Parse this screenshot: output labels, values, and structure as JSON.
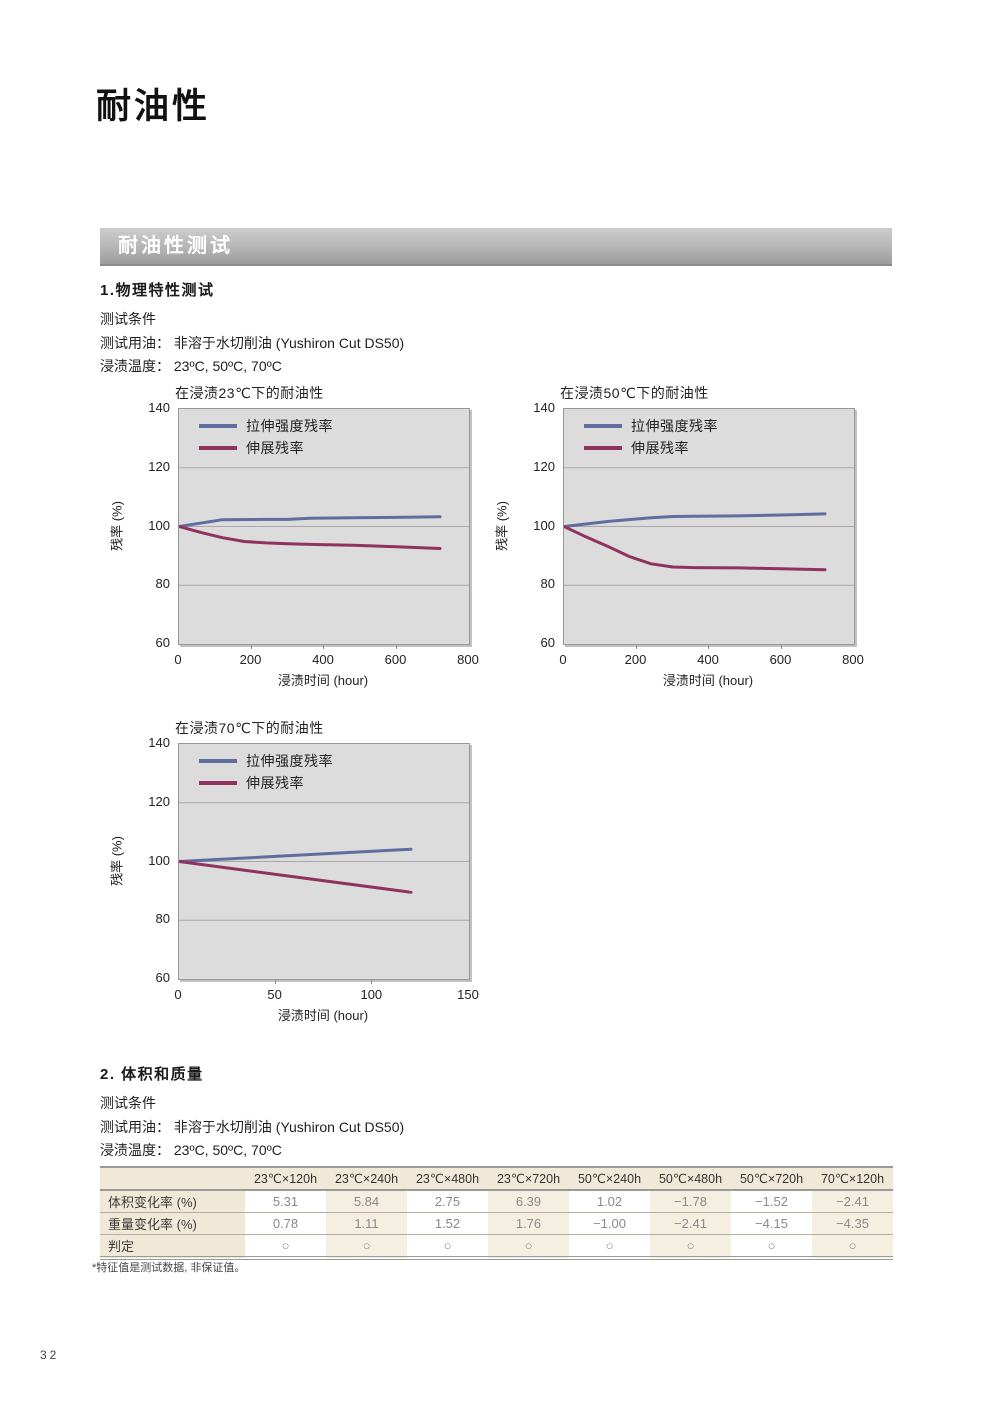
{
  "page": {
    "title": "耐油性",
    "number": "32",
    "footnote": "*特征值是测试数据, 非保证值。"
  },
  "section_header": {
    "label": "耐油性测试"
  },
  "section1": {
    "heading": "1.物理特性测试",
    "lines": [
      "测试条件",
      "测试用油： 非溶于水切削油 (Yushiron Cut DS50)",
      "浸渍温度： 23ºC, 50ºC, 70ºC"
    ]
  },
  "section2": {
    "heading": "2. 体积和质量",
    "lines": [
      "测试条件",
      "测试用油： 非溶于水切削油 (Yushiron Cut DS50)",
      "浸渍温度： 23ºC, 50ºC, 70ºC"
    ]
  },
  "chart_data": [
    {
      "type": "line",
      "title": "在浸渍23℃下的耐油性",
      "xlabel": "浸渍时间 (hour)",
      "ylabel": "残率 (%)",
      "xlim": [
        0,
        800
      ],
      "xticks": [
        0,
        200,
        400,
        600,
        800
      ],
      "ylim": [
        60,
        140
      ],
      "yticks": [
        60,
        80,
        100,
        120,
        140
      ],
      "grid": "horizontal",
      "legend_position": "top-left",
      "plot_bg": "#dcdcdc",
      "series": [
        {
          "name": "拉伸强度残率",
          "color": "#5f6e9e",
          "x": [
            0,
            120,
            240,
            300,
            360,
            480,
            600,
            720
          ],
          "y": [
            100,
            102.3,
            102.4,
            102.4,
            102.8,
            103,
            103.1,
            103.3
          ]
        },
        {
          "name": "伸展残率",
          "color": "#90325f",
          "x": [
            0,
            60,
            120,
            180,
            240,
            300,
            360,
            480,
            600,
            720
          ],
          "y": [
            100,
            98,
            96.2,
            94.9,
            94.4,
            94.1,
            93.9,
            93.6,
            93.1,
            92.5
          ]
        }
      ]
    },
    {
      "type": "line",
      "title": "在浸渍50℃下的耐油性",
      "xlabel": "浸渍时间 (hour)",
      "ylabel": "残率 (%)",
      "xlim": [
        0,
        800
      ],
      "xticks": [
        0,
        200,
        400,
        600,
        800
      ],
      "ylim": [
        60,
        140
      ],
      "yticks": [
        60,
        80,
        100,
        120,
        140
      ],
      "grid": "horizontal",
      "legend_position": "top-left",
      "plot_bg": "#dcdcdc",
      "series": [
        {
          "name": "拉伸强度残率",
          "color": "#5f6e9e",
          "x": [
            0,
            120,
            240,
            300,
            360,
            480,
            600,
            720
          ],
          "y": [
            100,
            101.7,
            103,
            103.4,
            103.5,
            103.6,
            103.9,
            104.3
          ]
        },
        {
          "name": "伸展残率",
          "color": "#90325f",
          "x": [
            0,
            60,
            120,
            180,
            240,
            300,
            360,
            480,
            600,
            720
          ],
          "y": [
            100,
            96.5,
            93.3,
            89.8,
            87.3,
            86.2,
            86,
            85.9,
            85.6,
            85.3
          ]
        }
      ]
    },
    {
      "type": "line",
      "title": "在浸渍70℃下的耐油性",
      "xlabel": "浸渍时间 (hour)",
      "ylabel": "残率 (%)",
      "xlim": [
        0,
        150
      ],
      "xticks": [
        0,
        50,
        100,
        150
      ],
      "ylim": [
        60,
        140
      ],
      "yticks": [
        60,
        80,
        100,
        120,
        140
      ],
      "grid": "horizontal",
      "legend_position": "top-left",
      "plot_bg": "#dcdcdc",
      "series": [
        {
          "name": "拉伸强度残率",
          "color": "#5f6e9e",
          "x": [
            0,
            120
          ],
          "y": [
            100,
            104.2
          ]
        },
        {
          "name": "伸展残率",
          "color": "#90325f",
          "x": [
            0,
            120
          ],
          "y": [
            100,
            89.5
          ]
        }
      ]
    }
  ],
  "table": {
    "corner": "",
    "columns": [
      "23℃×120h",
      "23℃×240h",
      "23℃×480h",
      "23℃×720h",
      "50℃×240h",
      "50℃×480h",
      "50℃×720h",
      "70℃×120h"
    ],
    "rows": [
      {
        "label": "体积变化率 (%)",
        "values": [
          "5.31",
          "5.84",
          "2.75",
          "6.39",
          "1.02",
          "−1.78",
          "−1.52",
          "−2.41"
        ]
      },
      {
        "label": "重量变化率 (%)",
        "values": [
          "0.78",
          "1.11",
          "1.52",
          "1.76",
          "−1.00",
          "−2.41",
          "−4.15",
          "−4.35"
        ]
      },
      {
        "label": "判定",
        "values": [
          "○",
          "○",
          "○",
          "○",
          "○",
          "○",
          "○",
          "○"
        ]
      }
    ]
  }
}
